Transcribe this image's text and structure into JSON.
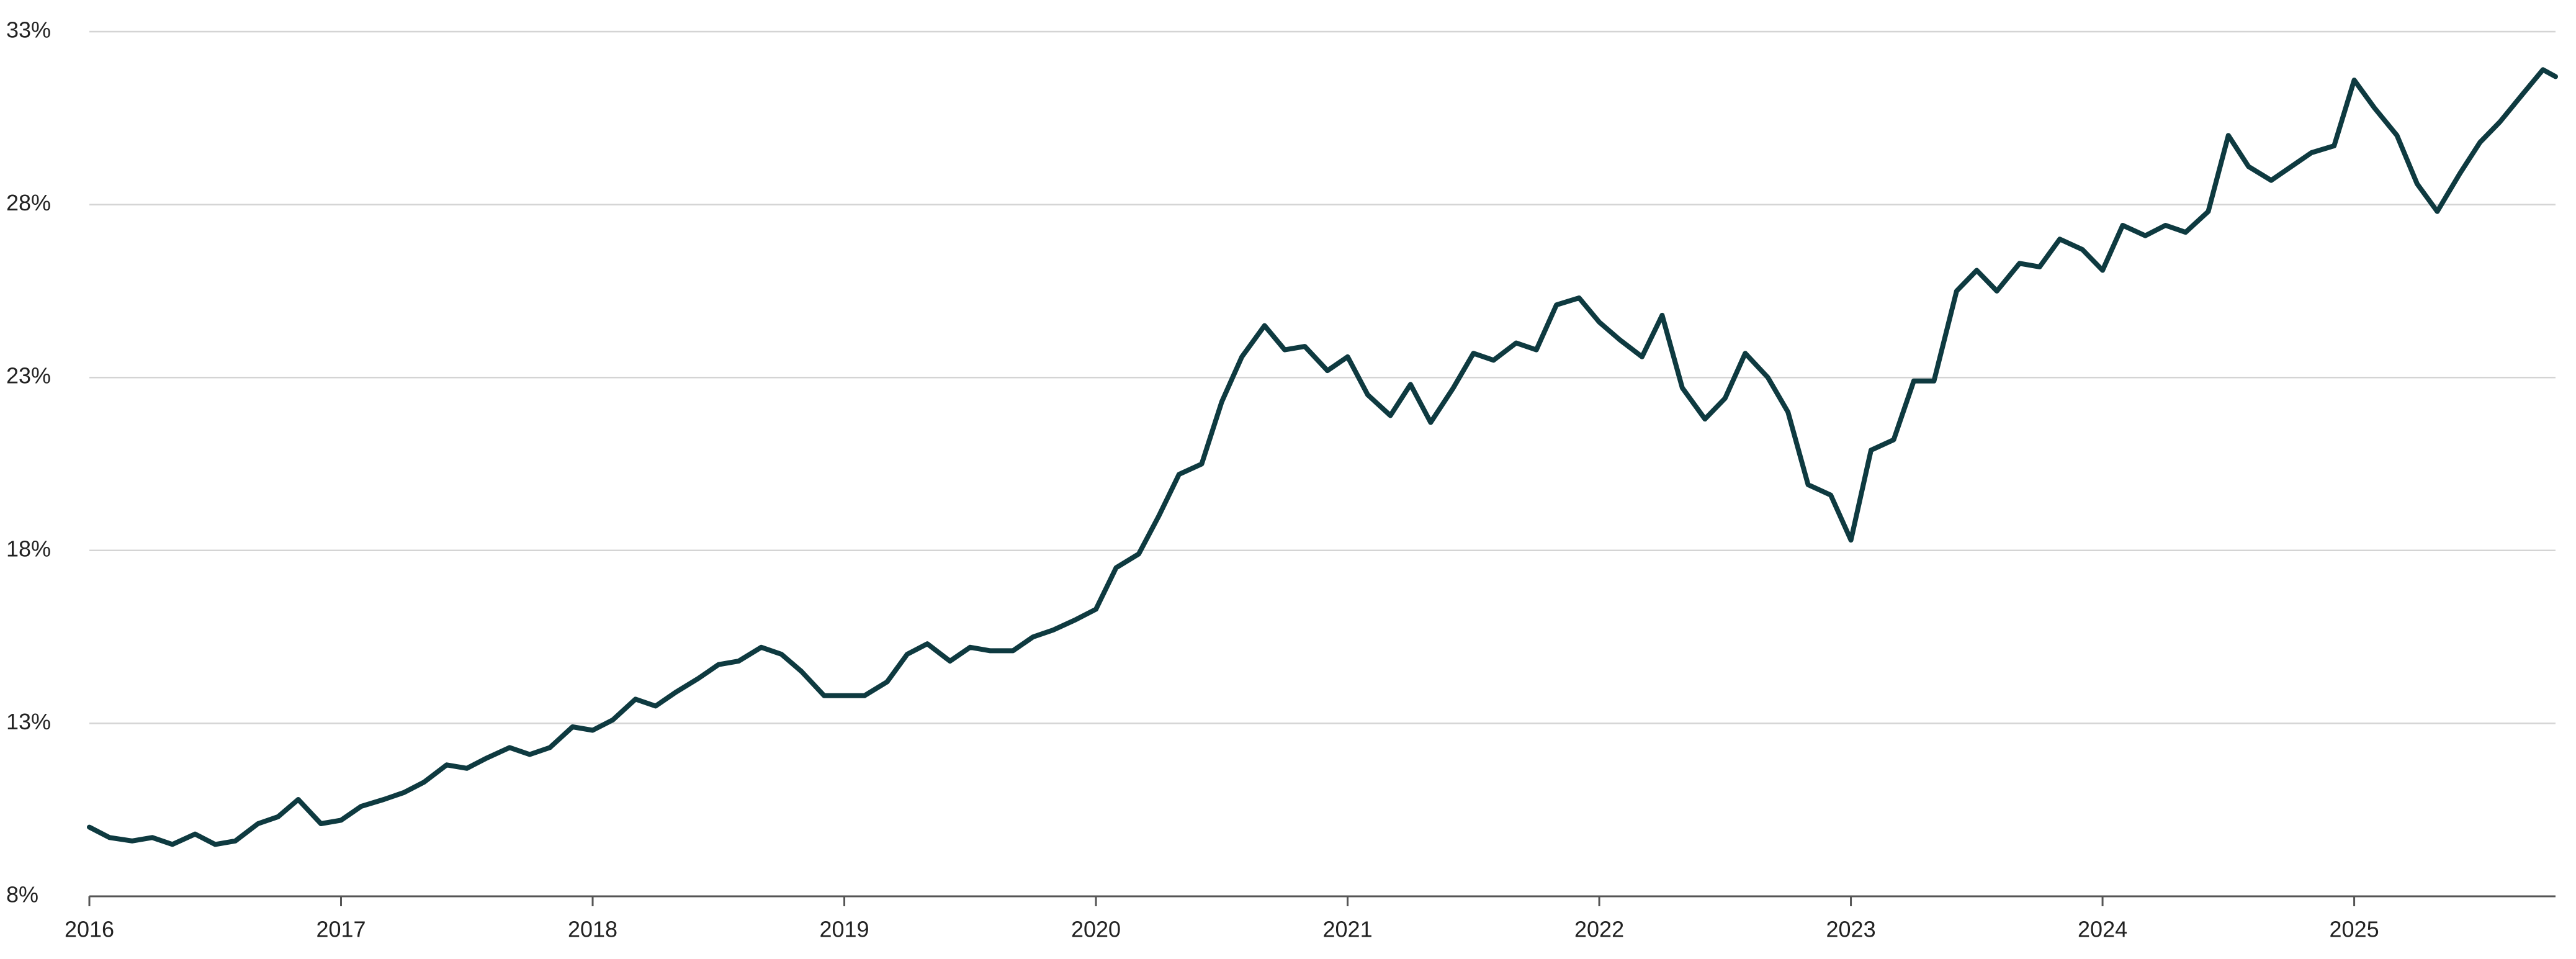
{
  "chart_data": {
    "type": "line",
    "x": [
      2016,
      2016.08,
      2016.17,
      2016.25,
      2016.33,
      2016.42,
      2016.5,
      2016.58,
      2016.67,
      2016.75,
      2016.83,
      2016.92,
      2017,
      2017.08,
      2017.17,
      2017.25,
      2017.33,
      2017.42,
      2017.5,
      2017.58,
      2017.67,
      2017.75,
      2017.83,
      2017.92,
      2018,
      2018.08,
      2018.17,
      2018.25,
      2018.33,
      2018.42,
      2018.5,
      2018.58,
      2018.67,
      2018.75,
      2018.83,
      2018.92,
      2019,
      2019.08,
      2019.17,
      2019.25,
      2019.33,
      2019.42,
      2019.5,
      2019.58,
      2019.67,
      2019.75,
      2019.83,
      2019.92,
      2020,
      2020.08,
      2020.17,
      2020.25,
      2020.33,
      2020.42,
      2020.5,
      2020.58,
      2020.67,
      2020.75,
      2020.83,
      2020.92,
      2021,
      2021.08,
      2021.17,
      2021.25,
      2021.33,
      2021.42,
      2021.5,
      2021.58,
      2021.67,
      2021.75,
      2021.83,
      2021.92,
      2022,
      2022.08,
      2022.17,
      2022.25,
      2022.33,
      2022.42,
      2022.5,
      2022.58,
      2022.67,
      2022.75,
      2022.83,
      2022.92,
      2023,
      2023.08,
      2023.17,
      2023.25,
      2023.33,
      2023.42,
      2023.5,
      2023.58,
      2023.67,
      2023.75,
      2023.83,
      2023.92,
      2024,
      2024.08,
      2024.17,
      2024.25,
      2024.33,
      2024.42,
      2024.5,
      2024.58,
      2024.67,
      2024.75,
      2024.83,
      2024.92,
      2025,
      2025.08,
      2025.17,
      2025.25,
      2025.33,
      2025.42,
      2025.5,
      2025.58,
      2025.67,
      2025.75,
      2025.8
    ],
    "values": [
      10.0,
      9.7,
      9.6,
      9.7,
      9.5,
      9.8,
      9.5,
      9.6,
      10.1,
      10.3,
      10.8,
      10.1,
      10.2,
      10.6,
      10.8,
      11.0,
      11.3,
      11.8,
      11.7,
      12.0,
      12.3,
      12.1,
      12.3,
      12.9,
      12.8,
      13.1,
      13.7,
      13.5,
      13.9,
      14.3,
      14.7,
      14.8,
      15.2,
      15.0,
      14.5,
      13.8,
      13.8,
      13.8,
      14.2,
      15.0,
      15.3,
      14.8,
      15.2,
      15.1,
      15.1,
      15.5,
      15.7,
      16.0,
      16.3,
      17.5,
      17.9,
      19.0,
      20.2,
      20.5,
      22.3,
      23.6,
      24.5,
      23.8,
      23.9,
      23.2,
      23.6,
      22.5,
      21.9,
      22.8,
      21.7,
      22.7,
      23.7,
      23.5,
      24.0,
      23.8,
      25.1,
      25.3,
      24.6,
      24.1,
      23.6,
      24.8,
      22.7,
      21.8,
      22.4,
      23.7,
      23.0,
      22.0,
      19.9,
      19.6,
      18.3,
      20.9,
      21.2,
      22.9,
      22.9,
      25.5,
      26.1,
      25.5,
      26.3,
      26.2,
      27.0,
      26.7,
      26.1,
      27.4,
      27.1,
      27.4,
      27.2,
      27.8,
      30.0,
      29.1,
      28.7,
      29.1,
      29.5,
      29.7,
      31.6,
      30.8,
      30.0,
      28.6,
      27.8,
      28.9,
      29.8,
      30.4,
      31.2,
      31.9,
      31.7
    ],
    "color": "#0e3a40",
    "xlim": [
      2016,
      2025.8
    ],
    "xticks": [
      2016,
      2017,
      2018,
      2019,
      2020,
      2021,
      2022,
      2023,
      2024,
      2025
    ],
    "ylim": [
      8,
      33
    ],
    "yticks": [
      {
        "value": 8,
        "label": "8%"
      },
      {
        "value": 13,
        "label": "13%"
      },
      {
        "value": 18,
        "label": "18%"
      },
      {
        "value": 23,
        "label": "23%"
      },
      {
        "value": 28,
        "label": "28%"
      },
      {
        "value": 33,
        "label": "33%"
      }
    ],
    "grid": true
  }
}
